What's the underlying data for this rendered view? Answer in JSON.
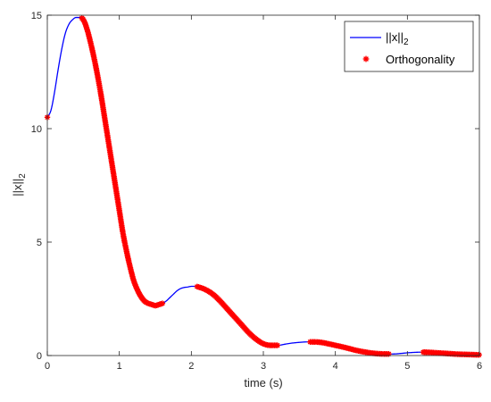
{
  "chart_data": {
    "type": "line",
    "xlabel": "time (s)",
    "ylabel": "||x||",
    "ylabel_subscript": "2",
    "xlim": [
      0,
      6
    ],
    "ylim": [
      0,
      15
    ],
    "xticks": [
      0,
      1,
      2,
      3,
      4,
      5,
      6
    ],
    "yticks": [
      0,
      5,
      10,
      15
    ],
    "grid": false,
    "legend_position": "top-right",
    "series": [
      {
        "name": "||x||",
        "name_subscript": "2",
        "color": "#0000ff",
        "style": "line",
        "x": [
          0,
          0.05,
          0.1,
          0.15,
          0.2,
          0.25,
          0.3,
          0.35,
          0.4,
          0.45,
          0.5,
          0.55,
          0.6,
          0.65,
          0.7,
          0.75,
          0.8,
          0.85,
          0.9,
          0.95,
          1.0,
          1.05,
          1.1,
          1.15,
          1.2,
          1.25,
          1.3,
          1.35,
          1.4,
          1.45,
          1.5,
          1.55,
          1.6,
          1.65,
          1.7,
          1.75,
          1.8,
          1.85,
          1.9,
          1.95,
          2.0,
          2.05,
          2.1,
          2.2,
          2.3,
          2.4,
          2.5,
          2.6,
          2.7,
          2.8,
          2.9,
          3.0,
          3.1,
          3.2,
          3.3,
          3.4,
          3.5,
          3.6,
          3.7,
          3.8,
          3.9,
          4.0,
          4.1,
          4.2,
          4.3,
          4.4,
          4.5,
          4.6,
          4.7,
          4.8,
          4.9,
          5.0,
          5.1,
          5.2,
          5.3,
          5.4,
          5.5,
          5.6,
          5.7,
          5.8,
          5.9,
          6.0
        ],
        "y": [
          10.5,
          10.8,
          11.6,
          12.6,
          13.5,
          14.2,
          14.6,
          14.8,
          14.9,
          14.9,
          14.8,
          14.4,
          13.8,
          13.1,
          12.3,
          11.4,
          10.4,
          9.4,
          8.4,
          7.4,
          6.4,
          5.4,
          4.6,
          3.9,
          3.3,
          2.9,
          2.6,
          2.4,
          2.3,
          2.25,
          2.2,
          2.25,
          2.3,
          2.4,
          2.55,
          2.7,
          2.85,
          2.95,
          3.0,
          3.02,
          3.05,
          3.05,
          3.02,
          2.9,
          2.7,
          2.4,
          2.05,
          1.7,
          1.35,
          1.0,
          0.72,
          0.52,
          0.45,
          0.45,
          0.5,
          0.55,
          0.58,
          0.6,
          0.6,
          0.58,
          0.52,
          0.45,
          0.38,
          0.3,
          0.22,
          0.16,
          0.11,
          0.08,
          0.07,
          0.07,
          0.09,
          0.12,
          0.14,
          0.15,
          0.14,
          0.12,
          0.1,
          0.08,
          0.06,
          0.05,
          0.04,
          0.03
        ]
      },
      {
        "name": "Orthogonality",
        "color": "#ff0000",
        "style": "marker",
        "marker": "asterisk",
        "segments": [
          [
            0,
            0.01
          ],
          [
            0.48,
            1.6
          ],
          [
            2.08,
            3.2
          ],
          [
            3.65,
            4.75
          ],
          [
            5.22,
            6.0
          ]
        ]
      }
    ]
  }
}
